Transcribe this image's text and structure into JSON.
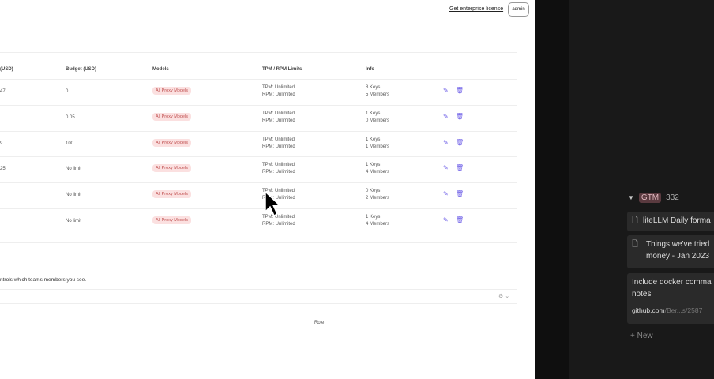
{
  "header": {
    "enterprise_link": "Get enterprise license",
    "user_button": "admin"
  },
  "table": {
    "columns": [
      "(USD)",
      "Budget (USD)",
      "Models",
      "TPM / RPM Limits",
      "Info"
    ],
    "rows": [
      {
        "spend": "47",
        "budget": "0",
        "models": "All Proxy Models",
        "tpm": "TPM: Unlimited",
        "rpm": "RPM: Unlimited",
        "keys": "8 Keys",
        "members": "5 Members"
      },
      {
        "spend": "",
        "budget": "0.05",
        "models": "All Proxy Models",
        "tpm": "TPM: Unlimited",
        "rpm": "RPM: Unlimited",
        "keys": "1 Keys",
        "members": "0 Members"
      },
      {
        "spend": "9",
        "budget": "100",
        "models": "All Proxy Models",
        "tpm": "TPM: Unlimited",
        "rpm": "RPM: Unlimited",
        "keys": "1 Keys",
        "members": "1 Members"
      },
      {
        "spend": "25",
        "budget": "No limit",
        "models": "All Proxy Models",
        "tpm": "TPM: Unlimited",
        "rpm": "RPM: Unlimited",
        "keys": "1 Keys",
        "members": "4 Members"
      },
      {
        "spend": "",
        "budget": "No limit",
        "models": "All Proxy Models",
        "tpm": "TPM: Unlimited",
        "rpm": "RPM: Unlimited",
        "keys": "0 Keys",
        "members": "2 Members"
      },
      {
        "spend": "",
        "budget": "No limit",
        "models": "All Proxy Models",
        "tpm": "TPM: Unlimited",
        "rpm": "RPM: Unlimited",
        "keys": "1 Keys",
        "members": "4 Members"
      }
    ],
    "action_icons": [
      "edit-icon",
      "trash-icon"
    ]
  },
  "members": {
    "note": "ntrols which teams members you see.",
    "role_header": "Role"
  },
  "sidebar": {
    "group_tag": "GTM",
    "group_count": "332",
    "cards": [
      {
        "title": "liteLLM Daily forma"
      },
      {
        "title": "Things we've tried money - Jan 2023"
      },
      {
        "title": "Include docker comma notes",
        "link_domain": "github.com",
        "link_path": "/Ber...s/2587"
      }
    ],
    "new_label": "New"
  },
  "colors": {
    "accent": "#6b5ce7",
    "pill_bg": "#fbe0e0",
    "pill_text": "#c05050",
    "dark_bg": "#191919"
  }
}
